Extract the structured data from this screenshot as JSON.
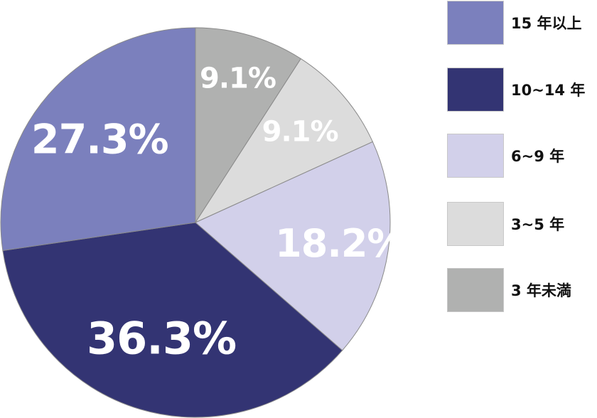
{
  "chart_data": {
    "type": "pie",
    "start_angle_deg": 0,
    "direction": "clockwise",
    "slices": [
      {
        "label": "3 年未満",
        "value": 9.1,
        "value_label": "9.1%",
        "color": "#b0b1b0"
      },
      {
        "label": "3~5 年",
        "value": 9.1,
        "value_label": "9.1%",
        "color": "#dcdcdc"
      },
      {
        "label": "6~9 年",
        "value": 18.2,
        "value_label": "18.2%",
        "color": "#d2d0ea"
      },
      {
        "label": "10~14 年",
        "value": 36.3,
        "value_label": "36.3%",
        "color": "#333473"
      },
      {
        "label": "15 年以上",
        "value": 27.3,
        "value_label": "27.3%",
        "color": "#7b80bd"
      }
    ],
    "legend": {
      "position": "right",
      "order": [
        "15 年以上",
        "10~14 年",
        "6~9 年",
        "3~5 年",
        "3 年未満"
      ]
    }
  }
}
